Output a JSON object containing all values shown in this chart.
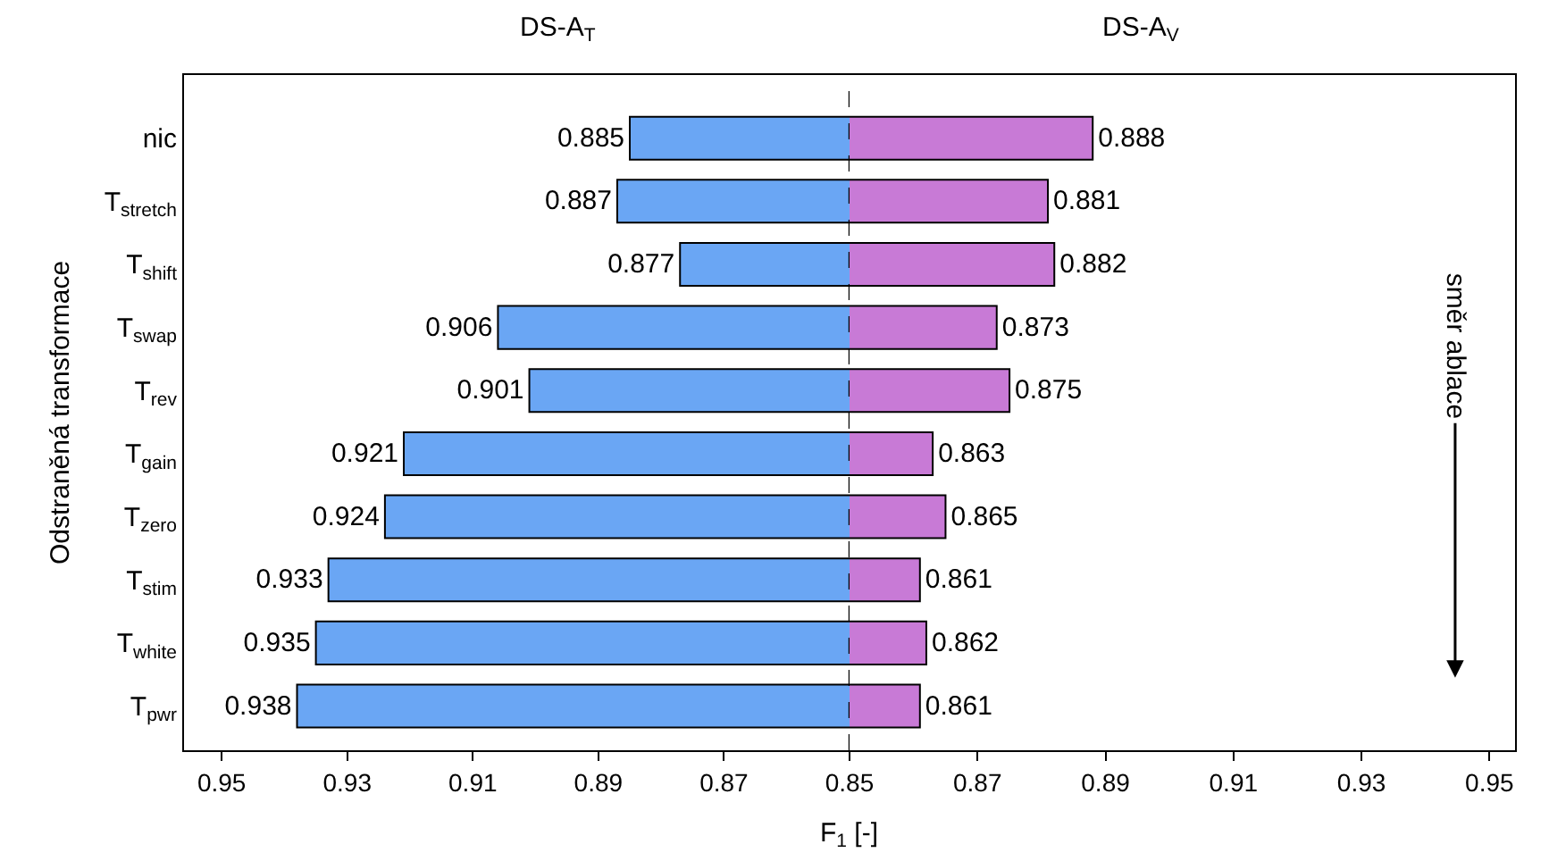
{
  "chart_data": [
    {
      "type": "bar",
      "orientation": "horizontal",
      "title": "DS-A$_{T}$",
      "xlabel": "F$_{1}$ [-]",
      "ylabel": "Odstraněná transformace",
      "categories": [
        "nic",
        "T$_{stretch}$",
        "T$_{shift}$",
        "T$_{swap}$",
        "T$_{rev}$",
        "T$_{gain}$",
        "T$_{zero}$",
        "T$_{stim}$",
        "T$_{white}$",
        "T$_{pwr}$"
      ],
      "values": [
        0.885,
        0.887,
        0.877,
        0.906,
        0.901,
        0.921,
        0.924,
        0.933,
        0.935,
        0.938
      ],
      "color": "#6aa6f4",
      "xlim": [
        0.956,
        0.85
      ],
      "xticks": [
        0.95,
        0.93,
        0.91,
        0.89,
        0.87,
        0.85
      ],
      "data_labels": true,
      "ref_lines": [
        {
          "axis": "x",
          "value": 0.85,
          "line_style": "dashed",
          "color": "#000000"
        }
      ]
    },
    {
      "type": "bar",
      "orientation": "horizontal",
      "title": "DS-A$_{V}$",
      "categories": [
        "nic",
        "T$_{stretch}$",
        "T$_{shift}$",
        "T$_{swap}$",
        "T$_{rev}$",
        "T$_{gain}$",
        "T$_{zero}$",
        "T$_{stim}$",
        "T$_{white}$",
        "T$_{pwr}$"
      ],
      "values": [
        0.888,
        0.881,
        0.882,
        0.873,
        0.875,
        0.863,
        0.865,
        0.861,
        0.862,
        0.861
      ],
      "color": "#c87ad6",
      "xlim": [
        0.85,
        0.954
      ],
      "xticks": [
        0.87,
        0.89,
        0.91,
        0.93,
        0.95
      ],
      "data_labels": true,
      "tick_labels": "x",
      "annotations": [
        "směr ablace"
      ]
    }
  ]
}
